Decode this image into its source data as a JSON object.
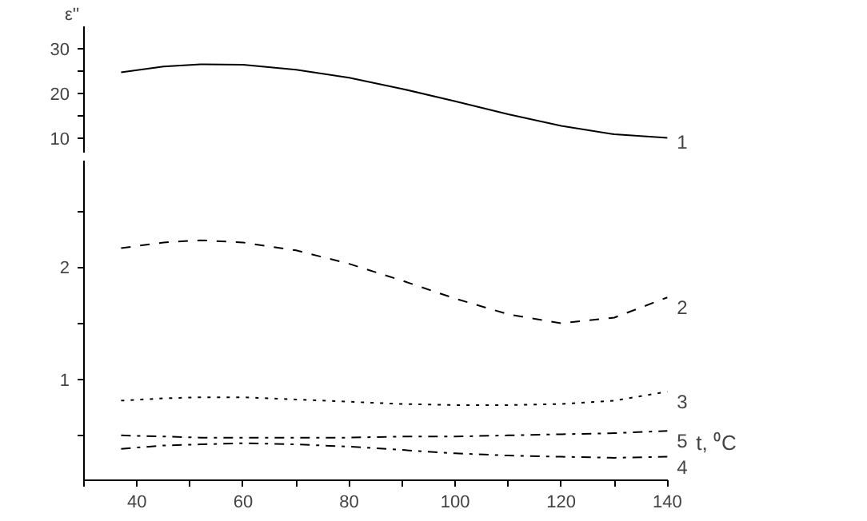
{
  "chart_data": [
    {
      "type": "line",
      "ylabel": "ε''",
      "xlim": [
        30,
        140
      ],
      "ylim": [
        6.7,
        35
      ],
      "yticks": [
        10,
        {
          "value": 15,
          "label": null
        },
        20,
        {
          "value": 25,
          "label": null
        },
        30
      ],
      "tick_labels": "y",
      "grid": false,
      "x": [
        37,
        45,
        52,
        60,
        70,
        80,
        90,
        100,
        110,
        120,
        130,
        140
      ],
      "series": [
        {
          "name": "1",
          "color": "#000000",
          "line_style": "solid",
          "values": [
            24.7,
            26.0,
            26.5,
            26.4,
            25.3,
            23.5,
            21.0,
            18.2,
            15.3,
            12.7,
            10.8,
            10.0
          ]
        }
      ]
    },
    {
      "type": "line",
      "xlabel": "t, ⁰C",
      "xlim": [
        30,
        140
      ],
      "ylim": [
        0.1,
        2.95
      ],
      "xticks": [
        {
          "value": 30,
          "label": null
        },
        40,
        {
          "value": 50,
          "label": null
        },
        60,
        {
          "value": 70,
          "label": null
        },
        80,
        {
          "value": 90,
          "label": null
        },
        100,
        {
          "value": 110,
          "label": null
        },
        120,
        {
          "value": 130,
          "label": null
        },
        140
      ],
      "yticks": [
        {
          "value": 0.5,
          "label": null
        },
        1,
        {
          "value": 1.5,
          "label": null
        },
        2,
        {
          "value": 2.5,
          "label": null
        }
      ],
      "grid": false,
      "x": [
        37,
        45,
        52,
        60,
        70,
        80,
        90,
        100,
        110,
        120,
        130,
        140
      ],
      "series": [
        {
          "name": "2",
          "color": "#000000",
          "line_style": "dashed",
          "values": [
            2.17,
            2.22,
            2.24,
            2.22,
            2.15,
            2.03,
            1.88,
            1.72,
            1.58,
            1.5,
            1.55,
            1.73
          ]
        },
        {
          "name": "3",
          "color": "#000000",
          "line_style": "dotted",
          "values": [
            0.81,
            0.83,
            0.84,
            0.84,
            0.82,
            0.8,
            0.78,
            0.77,
            0.77,
            0.78,
            0.81,
            0.89
          ]
        },
        {
          "name": "5",
          "color": "#000000",
          "line_style": "dashdot",
          "values": [
            0.5,
            0.49,
            0.48,
            0.48,
            0.48,
            0.48,
            0.49,
            0.49,
            0.5,
            0.51,
            0.52,
            0.54
          ]
        },
        {
          "name": "4",
          "color": "#000000",
          "line_style": "dashdot",
          "values": [
            0.38,
            0.41,
            0.42,
            0.43,
            0.42,
            0.4,
            0.37,
            0.34,
            0.32,
            0.31,
            0.3,
            0.31
          ]
        }
      ]
    }
  ]
}
